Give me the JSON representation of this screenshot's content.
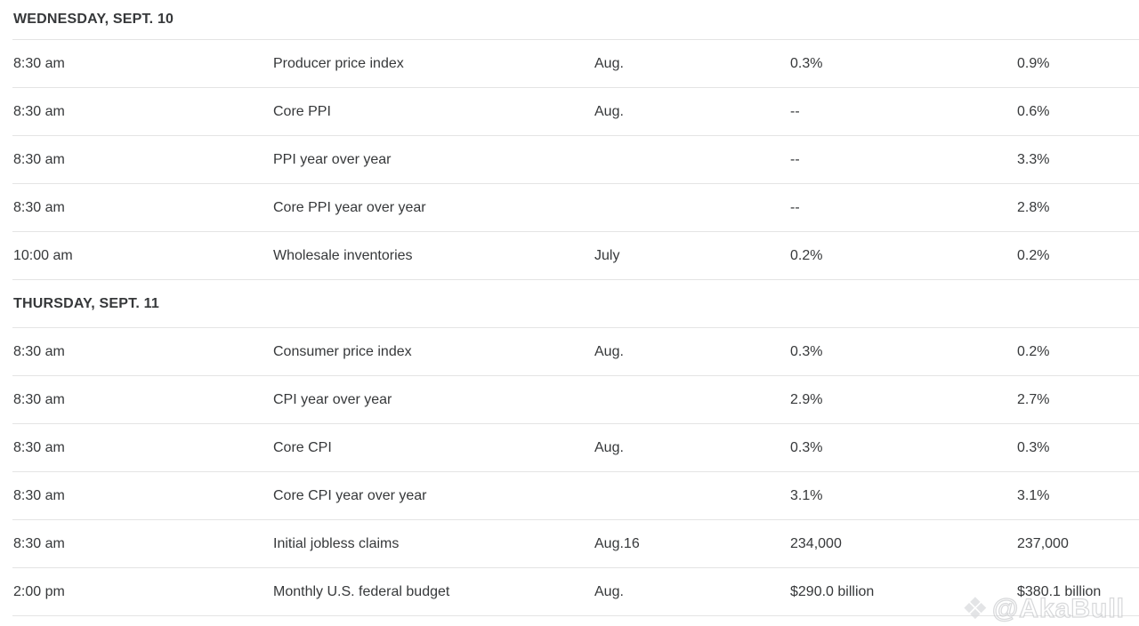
{
  "colors": {
    "row_border": "#e4e4e4",
    "cell_text": "#36383a",
    "header_text": "#141414",
    "background": "#ffffff",
    "watermark": "#b9bcc0"
  },
  "sections": [
    {
      "date_label": "WEDNESDAY, SEPT. 10",
      "rows": [
        {
          "time": "8:30 am",
          "report": "Producer price index",
          "period": "Aug.",
          "forecast": "0.3%",
          "previous": "0.9%"
        },
        {
          "time": "8:30 am",
          "report": "Core PPI",
          "period": "Aug.",
          "forecast": "--",
          "previous": "0.6%"
        },
        {
          "time": "8:30 am",
          "report": "PPI year over year",
          "period": "",
          "forecast": "--",
          "previous": "3.3%"
        },
        {
          "time": "8:30 am",
          "report": "Core PPI year over year",
          "period": "",
          "forecast": "--",
          "previous": "2.8%"
        },
        {
          "time": "10:00 am",
          "report": "Wholesale inventories",
          "period": "July",
          "forecast": "0.2%",
          "previous": "0.2%"
        }
      ]
    },
    {
      "date_label": "THURSDAY, SEPT. 11",
      "rows": [
        {
          "time": "8:30 am",
          "report": "Consumer price index",
          "period": "Aug.",
          "forecast": "0.3%",
          "previous": "0.2%"
        },
        {
          "time": "8:30 am",
          "report": "CPI year over year",
          "period": "",
          "forecast": "2.9%",
          "previous": "2.7%"
        },
        {
          "time": "8:30 am",
          "report": "Core CPI",
          "period": "Aug.",
          "forecast": "0.3%",
          "previous": "0.3%"
        },
        {
          "time": "8:30 am",
          "report": "Core CPI year over year",
          "period": "",
          "forecast": "3.1%",
          "previous": "3.1%"
        },
        {
          "time": "8:30 am",
          "report": "Initial jobless claims",
          "period": "Aug.16",
          "forecast": "234,000",
          "previous": "237,000"
        },
        {
          "time": "2:00 pm",
          "report": "Monthly U.S. federal budget",
          "period": "Aug.",
          "forecast": "$290.0 billion",
          "previous": "$380.1 billion"
        }
      ]
    }
  ],
  "watermark": {
    "logo_glyph": "❖",
    "text": "@AkaBull"
  }
}
